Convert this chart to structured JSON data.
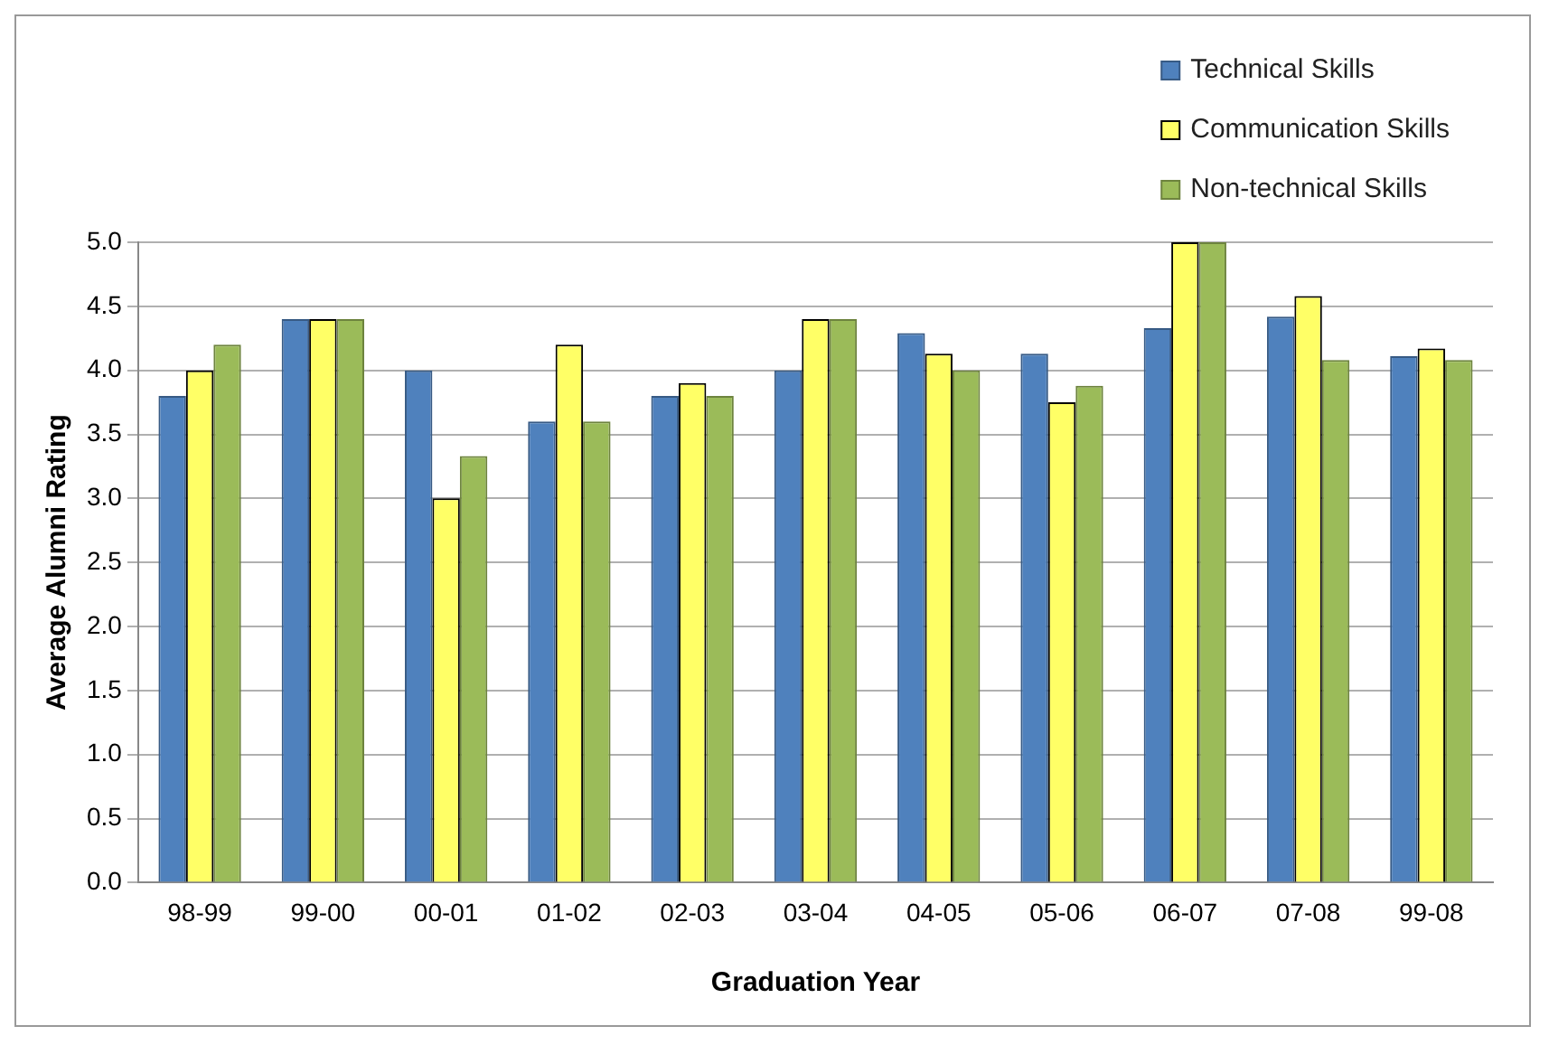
{
  "chart_data": {
    "type": "bar",
    "xlabel": "Graduation Year",
    "ylabel": "Average Alumni Rating",
    "categories": [
      "98-99",
      "99-00",
      "00-01",
      "01-02",
      "02-03",
      "03-04",
      "04-05",
      "05-06",
      "06-07",
      "07-08",
      "99-08"
    ],
    "series": [
      {
        "name": "Technical Skills",
        "color": "#4f81bd",
        "values": [
          3.8,
          4.4,
          4.0,
          3.6,
          3.8,
          4.0,
          4.29,
          4.13,
          4.33,
          4.42,
          4.11
        ]
      },
      {
        "name": "Communication Skills",
        "color": "#ffff66",
        "values": [
          4.0,
          4.4,
          3.0,
          4.2,
          3.9,
          4.4,
          4.13,
          3.75,
          5.0,
          4.58,
          4.17
        ]
      },
      {
        "name": "Non-technical Skills",
        "color": "#9bbb59",
        "values": [
          4.2,
          4.4,
          3.33,
          3.6,
          3.8,
          4.4,
          4.0,
          3.88,
          5.0,
          4.08,
          4.08
        ]
      }
    ],
    "ylim": [
      0,
      5
    ],
    "yticks": [
      {
        "value": 0,
        "label": "0.0"
      },
      {
        "value": 0.5,
        "label": "0.5"
      },
      {
        "value": 1,
        "label": "1.0"
      },
      {
        "value": 1.5,
        "label": "1.5"
      },
      {
        "value": 2,
        "label": "2.0"
      },
      {
        "value": 2.5,
        "label": "2.5"
      },
      {
        "value": 3,
        "label": "3.0"
      },
      {
        "value": 3.5,
        "label": "3.5"
      },
      {
        "value": 4,
        "label": "4.0"
      },
      {
        "value": 4.5,
        "label": "4.5"
      },
      {
        "value": 5,
        "label": "5.0"
      }
    ],
    "grid": "y",
    "legend": "top right"
  }
}
